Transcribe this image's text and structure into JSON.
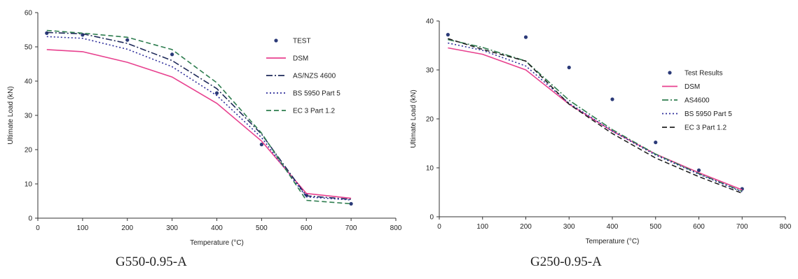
{
  "chart_data": [
    {
      "type": "line",
      "caption": "G550-0.95-A",
      "xlabel": "Temperature (°C)",
      "ylabel": "Ultimate Load (kN)",
      "xlim": [
        0,
        800
      ],
      "ylim": [
        0,
        60
      ],
      "xticks": [
        0,
        100,
        200,
        300,
        400,
        500,
        600,
        700,
        800
      ],
      "yticks": [
        0,
        10,
        20,
        30,
        40,
        50,
        60
      ],
      "grid": false,
      "legend": "right",
      "series": [
        {
          "name": "TEST",
          "style": "points",
          "color": "#2b3a78",
          "x": [
            20,
            100,
            200,
            300,
            400,
            500,
            600,
            700
          ],
          "y": [
            54,
            53.5,
            52,
            47.8,
            36.5,
            21.5,
            6.8,
            4.2
          ]
        },
        {
          "name": "DSM",
          "style": "solid",
          "color": "#e8418f",
          "x": [
            20,
            100,
            200,
            300,
            400,
            500,
            600,
            700
          ],
          "y": [
            49.2,
            48.6,
            45.5,
            41.2,
            33.5,
            22.5,
            7.2,
            5.8
          ]
        },
        {
          "name": "AS/NZS 4600",
          "style": "dashdot",
          "color": "#1f2a5a",
          "x": [
            20,
            100,
            200,
            300,
            400,
            500,
            600,
            700
          ],
          "y": [
            54.2,
            53.8,
            51,
            46,
            37.8,
            24.5,
            6.5,
            5.5
          ]
        },
        {
          "name": "BS 5950 Part 5",
          "style": "dotted",
          "color": "#2d2d9a",
          "x": [
            20,
            100,
            200,
            300,
            400,
            500,
            600,
            700
          ],
          "y": [
            53,
            52.5,
            49.3,
            44.2,
            35.8,
            23.5,
            6.2,
            5.3
          ]
        },
        {
          "name": "EC 3 Part 1.2",
          "style": "dashed",
          "color": "#2e7d4f",
          "x": [
            20,
            100,
            200,
            300,
            400,
            500,
            600,
            700
          ],
          "y": [
            54.8,
            54,
            52.8,
            49.2,
            39.5,
            24.8,
            5.2,
            4.2
          ]
        }
      ]
    },
    {
      "type": "line",
      "caption": "G250-0.95-A",
      "xlabel": "Temperature (°C)",
      "ylabel": "Ultimate Load (kN)",
      "xlim": [
        0,
        800
      ],
      "ylim": [
        0,
        40
      ],
      "xticks": [
        0,
        100,
        200,
        300,
        400,
        500,
        600,
        700,
        800
      ],
      "yticks": [
        0,
        10,
        20,
        30,
        40
      ],
      "grid": false,
      "legend": "right",
      "series": [
        {
          "name": "Test Results",
          "style": "points",
          "color": "#2b3a78",
          "x": [
            20,
            200,
            300,
            400,
            500,
            600,
            700
          ],
          "y": [
            37.2,
            36.7,
            30.5,
            24,
            15.2,
            9.5,
            5.7
          ]
        },
        {
          "name": "DSM",
          "style": "solid",
          "color": "#e8418f",
          "x": [
            20,
            100,
            200,
            300,
            400,
            500,
            600,
            700
          ],
          "y": [
            34.5,
            33.2,
            30,
            23,
            17.5,
            12.8,
            9,
            5.5
          ]
        },
        {
          "name": "AS4600",
          "style": "dashdot",
          "color": "#2e7d4f",
          "x": [
            20,
            100,
            200,
            300,
            400,
            500,
            600,
            700
          ],
          "y": [
            36.2,
            34.6,
            31.8,
            23.8,
            17.8,
            12.8,
            8.8,
            5.2
          ]
        },
        {
          "name": "BS 5950 Part 5",
          "style": "dotted",
          "color": "#2d2d9a",
          "x": [
            20,
            100,
            200,
            300,
            400,
            500,
            600,
            700
          ],
          "y": [
            35.5,
            34,
            30.8,
            23.2,
            17.5,
            12.6,
            8.7,
            5.1
          ]
        },
        {
          "name": "EC 3 Part 1.2",
          "style": "dashed",
          "color": "#222222",
          "x": [
            20,
            100,
            200,
            300,
            400,
            500,
            600,
            700
          ],
          "y": [
            36.4,
            34.2,
            31.8,
            23,
            17,
            12,
            8.2,
            4.8
          ]
        }
      ]
    }
  ]
}
